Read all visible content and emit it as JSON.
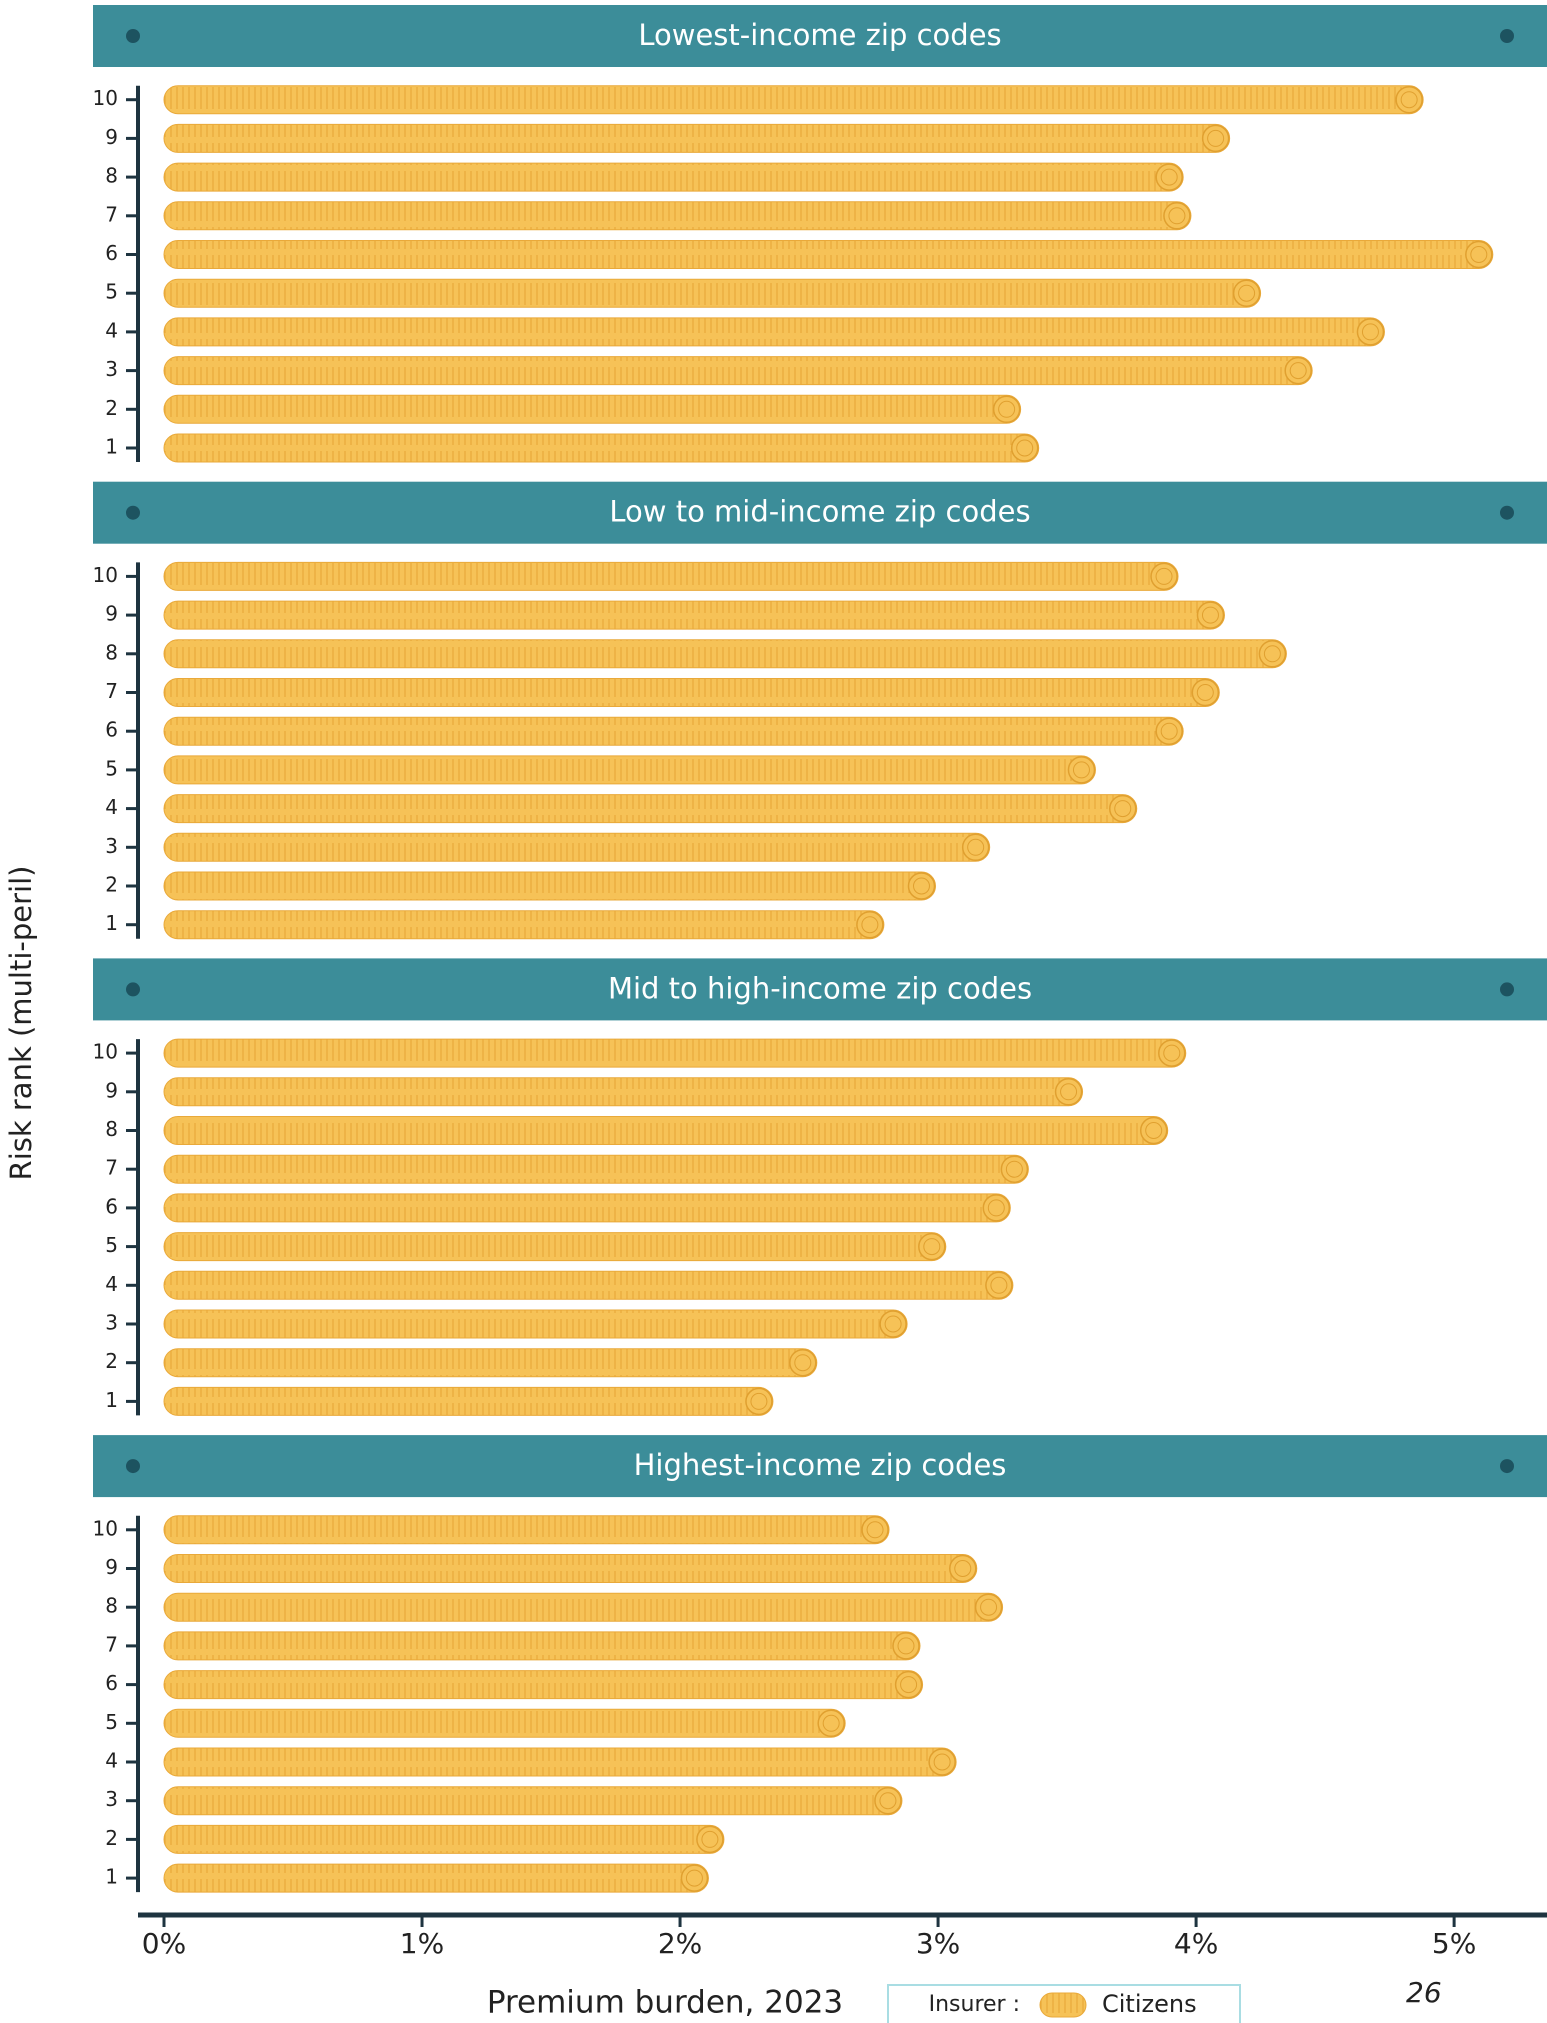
{
  "chart_data": {
    "type": "bar",
    "orientation": "horizontal",
    "y_label": "Risk rank (multi-peril)",
    "x_label": "Premium burden, 2023",
    "categories": [
      "1",
      "2",
      "3",
      "4",
      "5",
      "6",
      "7",
      "8",
      "9",
      "10"
    ],
    "xlim": [
      0,
      5.36
    ],
    "xticks": [
      {
        "value": 0,
        "label": "0%"
      },
      {
        "value": 1,
        "label": "1%"
      },
      {
        "value": 2,
        "label": "2%"
      },
      {
        "value": 3,
        "label": "3%"
      },
      {
        "value": 4,
        "label": "4%"
      },
      {
        "value": 5,
        "label": "5%"
      }
    ],
    "legend_title": "Insurer :",
    "series_name": "Citizens",
    "color": "#f6c257",
    "panels": [
      {
        "title": "Lowest-income zip codes",
        "values": [
          3.39,
          3.32,
          4.45,
          4.73,
          4.25,
          5.15,
          3.98,
          3.95,
          4.13,
          4.88
        ]
      },
      {
        "title": "Low to mid-income zip codes",
        "values": [
          2.79,
          2.99,
          3.2,
          3.77,
          3.61,
          3.95,
          4.09,
          4.35,
          4.11,
          3.93
        ]
      },
      {
        "title": "Mid to high-income zip codes",
        "values": [
          2.36,
          2.53,
          2.88,
          3.29,
          3.03,
          3.28,
          3.35,
          3.89,
          3.56,
          3.96
        ]
      },
      {
        "title": "Highest-income zip codes",
        "values": [
          2.11,
          2.17,
          2.86,
          3.07,
          2.64,
          2.94,
          2.93,
          3.25,
          3.15,
          2.81
        ]
      }
    ]
  },
  "page_number": "26"
}
